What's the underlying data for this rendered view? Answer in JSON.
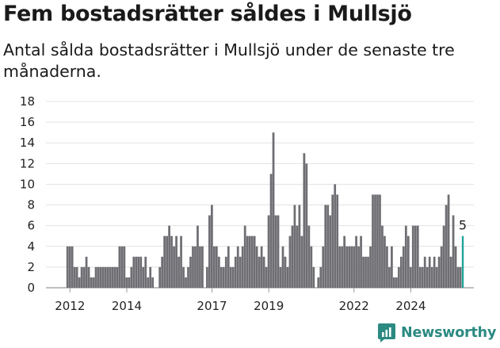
{
  "header": {
    "title": "Fem bostadsrätter såldes i Mullsjö",
    "subtitle": "Antal sålda bostadsrätter i Mullsjö under de senaste tre månaderna."
  },
  "brand": {
    "name": "Newsworthy"
  },
  "colors": {
    "bars": "#6e6e73",
    "highlight": "#1fa49a",
    "grid": "#e3e3e3",
    "brand": "#2b8a82"
  },
  "chart_data": {
    "type": "bar",
    "title": "Fem bostadsrätter såldes i Mullsjö",
    "subtitle": "Antal sålda bostadsrätter i Mullsjö under de senaste tre månaderna.",
    "xlabel": "",
    "ylabel": "",
    "ylim": [
      0,
      18
    ],
    "yticks": [
      0,
      2,
      4,
      6,
      8,
      10,
      12,
      14,
      16,
      18
    ],
    "xticks": [
      "2012",
      "2014",
      "2017",
      "2019",
      "2022",
      "2024"
    ],
    "x_start": "2011-12",
    "x_unit": "month",
    "highlight_label": "5",
    "series": [
      {
        "values": [
          4,
          4,
          4,
          2,
          2,
          1,
          2,
          2,
          3,
          2,
          1,
          1,
          2,
          2,
          2,
          2,
          2,
          2,
          2,
          2,
          2,
          2,
          4,
          4,
          4,
          1,
          1,
          2,
          3,
          3,
          3,
          3,
          2,
          3,
          1,
          2,
          1,
          0,
          0,
          2,
          3,
          5,
          5,
          6,
          5,
          4,
          5,
          3,
          5,
          2,
          1,
          2,
          3,
          4,
          4,
          6,
          4,
          4,
          0,
          2,
          7,
          8,
          4,
          4,
          3,
          2,
          2,
          3,
          4,
          2,
          2,
          3,
          4,
          3,
          4,
          6,
          5,
          5,
          5,
          5,
          4,
          3,
          4,
          3,
          2,
          7,
          11,
          15,
          7,
          7,
          2,
          4,
          3,
          2,
          5,
          6,
          8,
          6,
          8,
          5,
          13,
          12,
          6,
          4,
          2,
          0,
          1,
          2,
          4,
          8,
          8,
          7,
          9,
          10,
          9,
          4,
          4,
          5,
          4,
          4,
          4,
          4,
          5,
          4,
          5,
          3,
          3,
          3,
          4,
          9,
          9,
          9,
          9,
          6,
          5,
          4,
          2,
          4,
          1,
          1,
          2,
          3,
          4,
          6,
          5,
          2,
          6,
          6,
          6,
          2,
          2,
          3,
          2,
          3,
          2,
          3,
          2,
          3,
          4,
          6,
          8,
          9,
          3,
          7,
          4,
          2,
          2,
          5
        ]
      }
    ]
  }
}
